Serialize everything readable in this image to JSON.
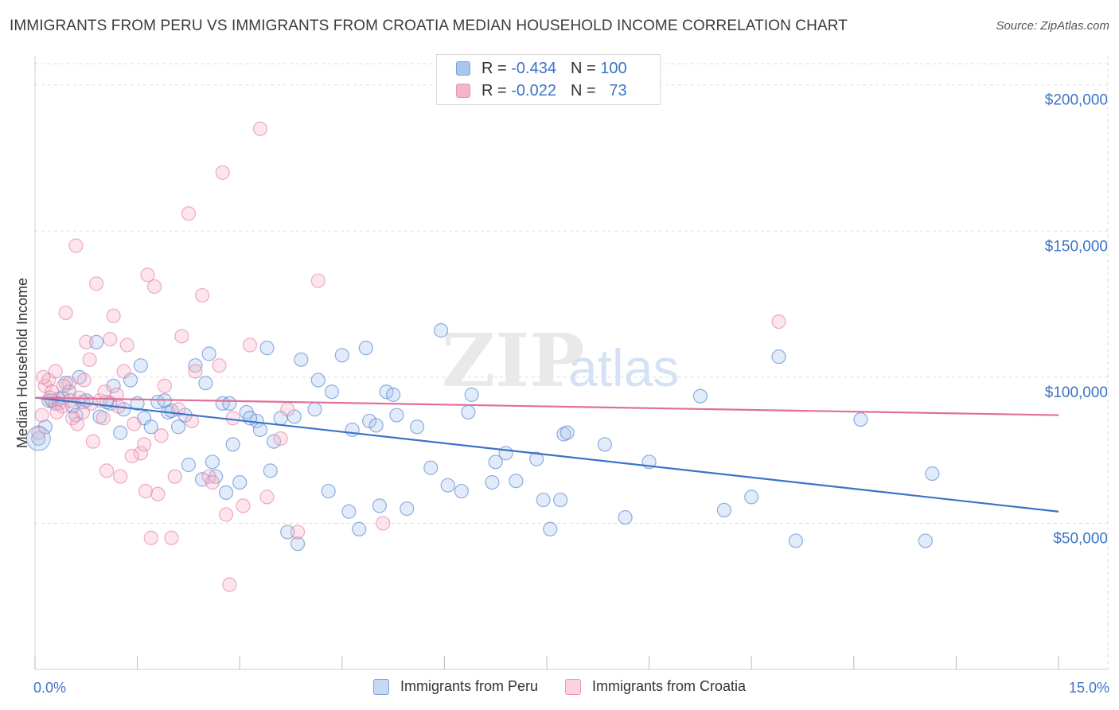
{
  "header": {
    "title": "IMMIGRANTS FROM PERU VS IMMIGRANTS FROM CROATIA MEDIAN HOUSEHOLD INCOME CORRELATION CHART",
    "source": "Source: ZipAtlas.com"
  },
  "watermark": {
    "zip": "ZIP",
    "atlas": "atlas"
  },
  "legend": {
    "rows": [
      {
        "r_label": "R = ",
        "r_value": "-0.434",
        "n_label": "N = ",
        "n_value": "100",
        "color": "#a9c6ef"
      },
      {
        "r_label": "R = ",
        "r_value": "-0.022",
        "n_label": "N = ",
        "n_value": "73",
        "color": "#f5b5c8"
      }
    ]
  },
  "bottom_legend": {
    "peru": "Immigrants from Peru",
    "croatia": "Immigrants from Croatia"
  },
  "chart_data": {
    "type": "scatter",
    "title": "IMMIGRANTS FROM PERU VS IMMIGRANTS FROM CROATIA MEDIAN HOUSEHOLD INCOME CORRELATION CHART",
    "xlabel": "",
    "ylabel": "Median Household Income",
    "xlim": [
      0,
      15
    ],
    "ylim": [
      0,
      210000
    ],
    "x_tick_labels": [
      "0.0%",
      "15.0%"
    ],
    "y_ticks": [
      50000,
      100000,
      150000,
      200000
    ],
    "y_tick_labels": [
      "$50,000",
      "$100,000",
      "$150,000",
      "$200,000"
    ],
    "grid": true,
    "colors": {
      "peru": "#3d73c6",
      "peru_fill": "#a9c6ef",
      "croatia": "#e07099",
      "croatia_fill": "#f5b5c8"
    },
    "series": [
      {
        "name": "Immigrants from Peru",
        "trend": {
          "x": [
            0,
            15
          ],
          "y": [
            93000,
            54000
          ]
        },
        "points": [
          [
            0.05,
            79000
          ],
          [
            0.15,
            83000
          ],
          [
            0.2,
            92000
          ],
          [
            0.3,
            91000
          ],
          [
            0.35,
            92500
          ],
          [
            0.45,
            98000
          ],
          [
            0.5,
            95000
          ],
          [
            0.55,
            90000
          ],
          [
            0.6,
            87000
          ],
          [
            0.65,
            100000
          ],
          [
            0.7,
            91500
          ],
          [
            0.9,
            112000
          ],
          [
            0.95,
            86500
          ],
          [
            1.1,
            91000
          ],
          [
            1.15,
            97000
          ],
          [
            1.25,
            81000
          ],
          [
            1.3,
            89000
          ],
          [
            1.4,
            99000
          ],
          [
            1.55,
            104000
          ],
          [
            1.6,
            86000
          ],
          [
            1.7,
            83000
          ],
          [
            1.8,
            91500
          ],
          [
            1.95,
            88000
          ],
          [
            2.0,
            88500
          ],
          [
            2.1,
            83000
          ],
          [
            2.25,
            70000
          ],
          [
            2.35,
            104000
          ],
          [
            2.45,
            65000
          ],
          [
            2.5,
            98000
          ],
          [
            2.55,
            108000
          ],
          [
            2.6,
            71000
          ],
          [
            2.65,
            66000
          ],
          [
            2.75,
            91000
          ],
          [
            2.8,
            60500
          ],
          [
            2.85,
            91000
          ],
          [
            2.9,
            77000
          ],
          [
            3.0,
            64000
          ],
          [
            3.1,
            88000
          ],
          [
            3.25,
            85000
          ],
          [
            3.3,
            82000
          ],
          [
            3.4,
            110000
          ],
          [
            3.45,
            68000
          ],
          [
            3.5,
            78000
          ],
          [
            3.6,
            86000
          ],
          [
            3.7,
            47000
          ],
          [
            3.8,
            86500
          ],
          [
            3.85,
            43000
          ],
          [
            3.9,
            106000
          ],
          [
            4.1,
            89000
          ],
          [
            4.15,
            99000
          ],
          [
            4.3,
            61000
          ],
          [
            4.35,
            95000
          ],
          [
            4.5,
            107500
          ],
          [
            4.6,
            54000
          ],
          [
            4.65,
            82000
          ],
          [
            4.75,
            48000
          ],
          [
            4.85,
            110000
          ],
          [
            4.9,
            85000
          ],
          [
            5.05,
            56000
          ],
          [
            5.15,
            95000
          ],
          [
            5.25,
            94000
          ],
          [
            5.3,
            87000
          ],
          [
            5.45,
            55000
          ],
          [
            5.6,
            83000
          ],
          [
            5.8,
            69000
          ],
          [
            5.95,
            116000
          ],
          [
            6.05,
            63000
          ],
          [
            6.25,
            61000
          ],
          [
            6.35,
            88000
          ],
          [
            6.4,
            94000
          ],
          [
            6.7,
            64000
          ],
          [
            6.75,
            71000
          ],
          [
            7.05,
            64500
          ],
          [
            7.35,
            72000
          ],
          [
            7.45,
            58000
          ],
          [
            7.55,
            48000
          ],
          [
            7.7,
            58000
          ],
          [
            7.75,
            80500
          ],
          [
            7.8,
            81000
          ],
          [
            8.35,
            77000
          ],
          [
            8.65,
            52000
          ],
          [
            9.0,
            71000
          ],
          [
            9.75,
            93500
          ],
          [
            10.1,
            54500
          ],
          [
            10.5,
            59000
          ],
          [
            10.9,
            107000
          ],
          [
            11.15,
            44000
          ],
          [
            12.1,
            85500
          ],
          [
            13.05,
            44000
          ],
          [
            13.15,
            67000
          ],
          [
            0.25,
            92000
          ],
          [
            0.4,
            93000
          ],
          [
            0.75,
            92000
          ],
          [
            1.05,
            91500
          ],
          [
            1.5,
            91000
          ],
          [
            1.9,
            92000
          ],
          [
            2.2,
            87000
          ],
          [
            3.15,
            86000
          ],
          [
            5.0,
            83500
          ],
          [
            6.9,
            74000
          ]
        ]
      },
      {
        "name": "Immigrants from Croatia",
        "trend": {
          "x": [
            0,
            15
          ],
          "y": [
            93000,
            87000
          ]
        },
        "points": [
          [
            0.05,
            81000
          ],
          [
            0.1,
            87000
          ],
          [
            0.15,
            97000
          ],
          [
            0.2,
            99000
          ],
          [
            0.25,
            95000
          ],
          [
            0.3,
            102000
          ],
          [
            0.35,
            91000
          ],
          [
            0.4,
            90000
          ],
          [
            0.45,
            122000
          ],
          [
            0.5,
            98000
          ],
          [
            0.55,
            86000
          ],
          [
            0.6,
            145000
          ],
          [
            0.65,
            93000
          ],
          [
            0.7,
            88000
          ],
          [
            0.75,
            112000
          ],
          [
            0.8,
            106000
          ],
          [
            0.85,
            78000
          ],
          [
            0.9,
            132000
          ],
          [
            0.95,
            92000
          ],
          [
            1.0,
            86000
          ],
          [
            1.05,
            68000
          ],
          [
            1.1,
            113000
          ],
          [
            1.15,
            121000
          ],
          [
            1.2,
            94000
          ],
          [
            1.25,
            66000
          ],
          [
            1.3,
            102000
          ],
          [
            1.35,
            111000
          ],
          [
            1.45,
            84000
          ],
          [
            1.55,
            74000
          ],
          [
            1.6,
            77000
          ],
          [
            1.65,
            135000
          ],
          [
            1.7,
            45000
          ],
          [
            1.75,
            131000
          ],
          [
            1.8,
            60000
          ],
          [
            1.85,
            80000
          ],
          [
            1.9,
            97000
          ],
          [
            2.0,
            45000
          ],
          [
            2.1,
            89000
          ],
          [
            2.15,
            114000
          ],
          [
            2.25,
            156000
          ],
          [
            2.3,
            85000
          ],
          [
            2.35,
            102000
          ],
          [
            2.45,
            128000
          ],
          [
            2.55,
            66000
          ],
          [
            2.6,
            64000
          ],
          [
            2.7,
            104000
          ],
          [
            2.75,
            170000
          ],
          [
            2.8,
            53000
          ],
          [
            2.85,
            29000
          ],
          [
            2.9,
            86000
          ],
          [
            3.05,
            56000
          ],
          [
            3.15,
            111000
          ],
          [
            3.3,
            185000
          ],
          [
            3.4,
            59000
          ],
          [
            3.6,
            79000
          ],
          [
            3.7,
            89000
          ],
          [
            3.85,
            47000
          ],
          [
            4.15,
            133000
          ],
          [
            5.1,
            50000
          ],
          [
            10.9,
            119000
          ],
          [
            0.12,
            100000
          ],
          [
            0.22,
            93000
          ],
          [
            0.32,
            88000
          ],
          [
            0.42,
            97000
          ],
          [
            0.52,
            92000
          ],
          [
            0.62,
            84000
          ],
          [
            0.72,
            99000
          ],
          [
            0.82,
            91000
          ],
          [
            1.02,
            95000
          ],
          [
            1.22,
            90000
          ],
          [
            1.42,
            73000
          ],
          [
            1.62,
            61000
          ],
          [
            2.05,
            66000
          ]
        ]
      }
    ]
  }
}
